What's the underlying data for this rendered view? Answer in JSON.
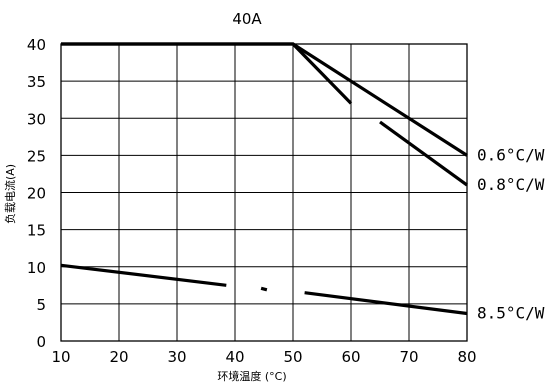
{
  "chart_data": {
    "type": "line",
    "title": "40A",
    "xlabel": "环境温度 (°C)",
    "ylabel": "负载电流(A)",
    "xlim": [
      10,
      80
    ],
    "ylim": [
      0,
      40
    ],
    "xticks": [
      10,
      20,
      30,
      40,
      50,
      60,
      70,
      80
    ],
    "yticks": [
      0,
      5,
      10,
      15,
      20,
      25,
      30,
      35,
      40
    ],
    "grid": true,
    "series": [
      {
        "name": "0.6°C/W",
        "segments": [
          [
            [
              10,
              40
            ],
            [
              50,
              40
            ],
            [
              80,
              25
            ]
          ]
        ]
      },
      {
        "name": "0.8°C/W",
        "segments": [
          [
            [
              10,
              40
            ],
            [
              50,
              40
            ],
            [
              60,
              32
            ]
          ],
          [
            [
              65,
              29.5
            ],
            [
              80,
              21
            ]
          ]
        ]
      },
      {
        "name": "8.5°C/W",
        "segments": [
          [
            [
              10,
              10.2
            ],
            [
              38.5,
              7.5
            ]
          ],
          [
            [
              44.5,
              7.1
            ],
            [
              45.5,
              6.9
            ]
          ],
          [
            [
              52,
              6.5
            ],
            [
              80,
              3.7
            ]
          ]
        ]
      }
    ]
  }
}
